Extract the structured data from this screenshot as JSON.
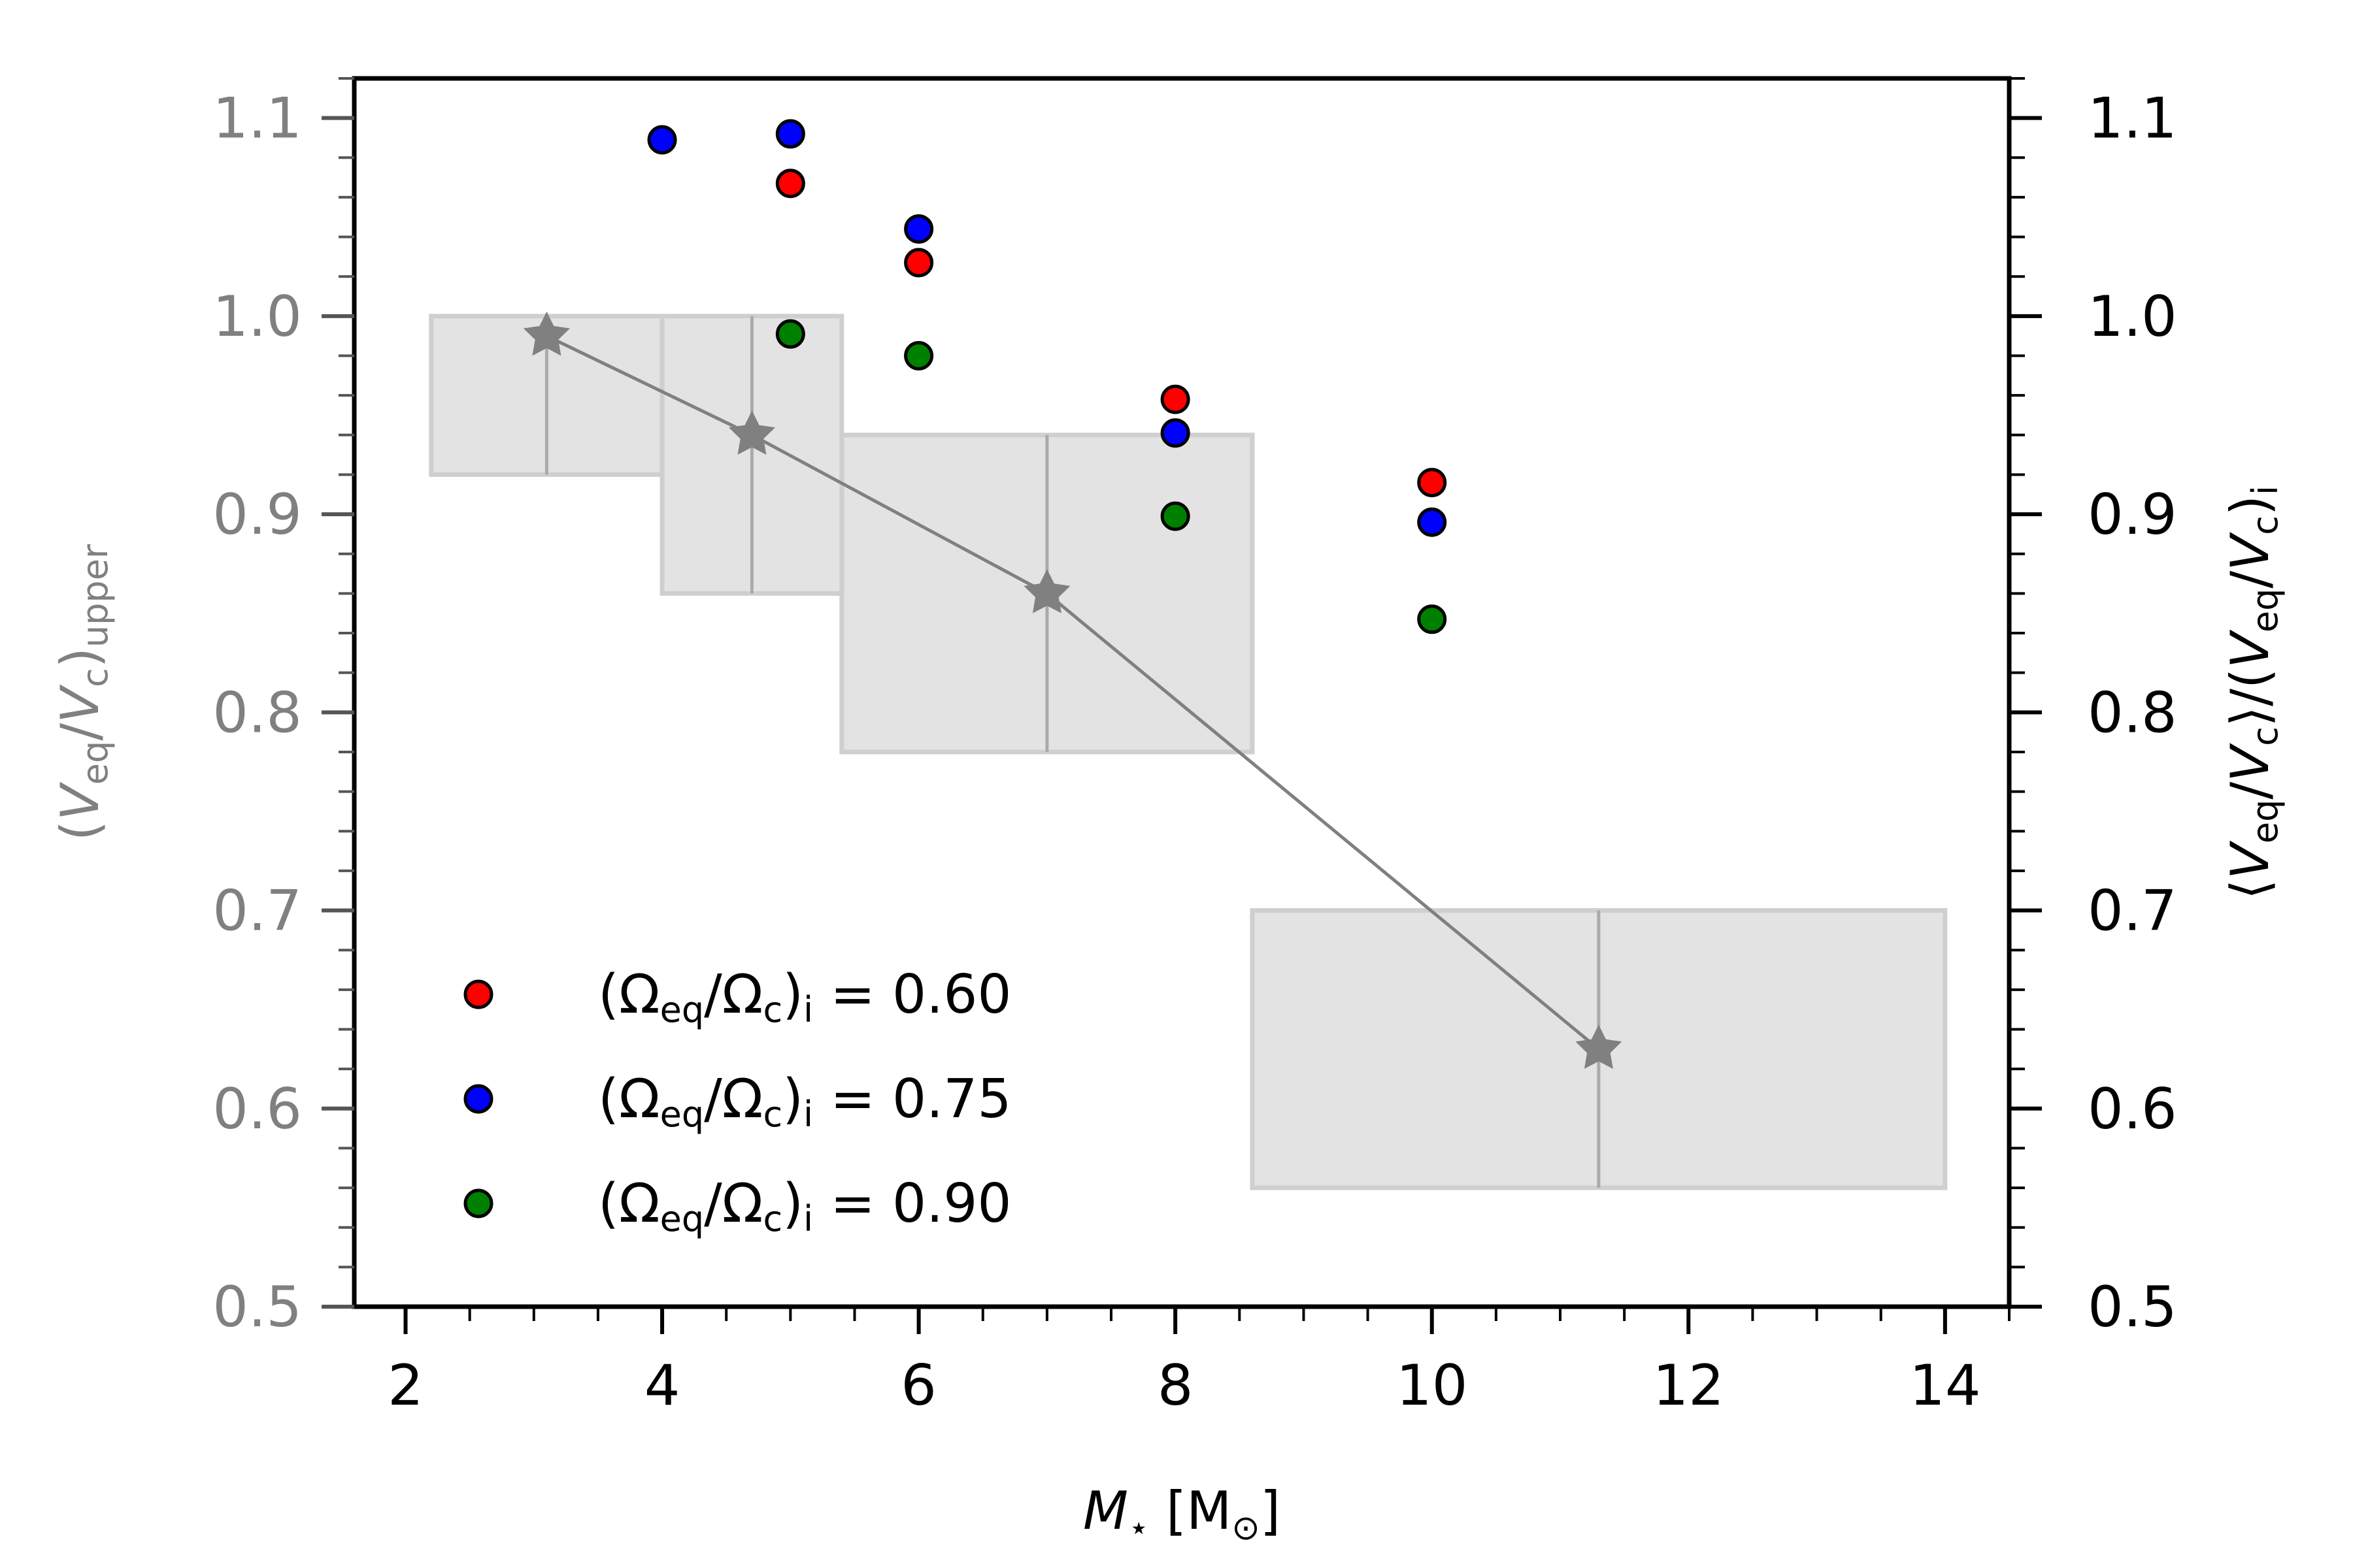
{
  "chart_data": {
    "type": "scatter",
    "x_axis": {
      "label_italic": "M",
      "label_sub": "⋆",
      "label_unit_open": "[M",
      "label_unit_sub": "⊙",
      "label_unit_close": "]",
      "range": [
        1.6,
        14.5
      ],
      "ticks": [
        2,
        4,
        6,
        8,
        10,
        12,
        14
      ],
      "tick_labels": [
        "2",
        "4",
        "6",
        "8",
        "10",
        "12",
        "14"
      ],
      "minor_step": 0.5
    },
    "left_axis": {
      "label_parts": [
        "(",
        "V",
        "eq",
        "/",
        "V",
        "c",
        ")",
        "upper"
      ],
      "color": "#808080",
      "range": [
        0.5,
        1.12
      ],
      "ticks": [
        0.5,
        0.6,
        0.7,
        0.8,
        0.9,
        1.0,
        1.1
      ],
      "tick_labels": [
        "0.5",
        "0.6",
        "0.7",
        "0.8",
        "0.9",
        "1.0",
        "1.1"
      ],
      "minor_step": 0.02
    },
    "right_axis": {
      "label_parts": [
        "⟨",
        "V",
        "eq",
        "/",
        "V",
        "c",
        "⟩/(",
        "V",
        "eq",
        "/",
        "V",
        "c",
        ")",
        "i"
      ],
      "color": "#000000",
      "range": [
        0.5,
        1.12
      ],
      "ticks": [
        0.5,
        0.6,
        0.7,
        0.8,
        0.9,
        1.0,
        1.1
      ],
      "tick_labels": [
        "0.5",
        "0.6",
        "0.7",
        "0.8",
        "0.9",
        "1.0",
        "1.1"
      ],
      "minor_step": 0.02
    },
    "upper_limit_line": {
      "color": "#808080",
      "marker": "star",
      "points": [
        {
          "x": 3.1,
          "y": 0.99
        },
        {
          "x": 4.7,
          "y": 0.94
        },
        {
          "x": 7.0,
          "y": 0.86
        },
        {
          "x": 11.3,
          "y": 0.63
        }
      ]
    },
    "shaded_bins": [
      {
        "x0": 2.2,
        "x1": 4.0,
        "y0": 0.92,
        "y1": 1.0,
        "x_mid": 3.1
      },
      {
        "x0": 4.0,
        "x1": 5.4,
        "y0": 0.86,
        "y1": 1.0,
        "x_mid": 4.7
      },
      {
        "x0": 5.4,
        "x1": 8.6,
        "y0": 0.78,
        "y1": 0.94,
        "x_mid": 7.0
      },
      {
        "x0": 8.6,
        "x1": 14.0,
        "y0": 0.56,
        "y1": 0.7,
        "x_mid": 11.3
      }
    ],
    "series": [
      {
        "name": "0.60",
        "color": "#ff0000",
        "points": [
          {
            "x": 5,
            "y": 1.067
          },
          {
            "x": 6,
            "y": 1.027
          },
          {
            "x": 8,
            "y": 0.958
          },
          {
            "x": 10,
            "y": 0.916
          }
        ]
      },
      {
        "name": "0.75",
        "color": "#0000ff",
        "points": [
          {
            "x": 4,
            "y": 1.089
          },
          {
            "x": 5,
            "y": 1.092
          },
          {
            "x": 6,
            "y": 1.044
          },
          {
            "x": 8,
            "y": 0.941
          },
          {
            "x": 10,
            "y": 0.896
          }
        ]
      },
      {
        "name": "0.90",
        "color": "#008000",
        "points": [
          {
            "x": 5,
            "y": 0.991
          },
          {
            "x": 6,
            "y": 0.98
          },
          {
            "x": 8,
            "y": 0.899
          },
          {
            "x": 10,
            "y": 0.847
          }
        ]
      }
    ],
    "legend": {
      "placement": "lower-left",
      "label_prefix": "(Ω",
      "label_sub1": "eq",
      "label_mid": "/Ω",
      "label_sub2": "c",
      "label_close": ")",
      "label_sub3": "i",
      "label_eq": " = ",
      "entries": [
        "0.60",
        "0.75",
        "0.90"
      ]
    }
  }
}
